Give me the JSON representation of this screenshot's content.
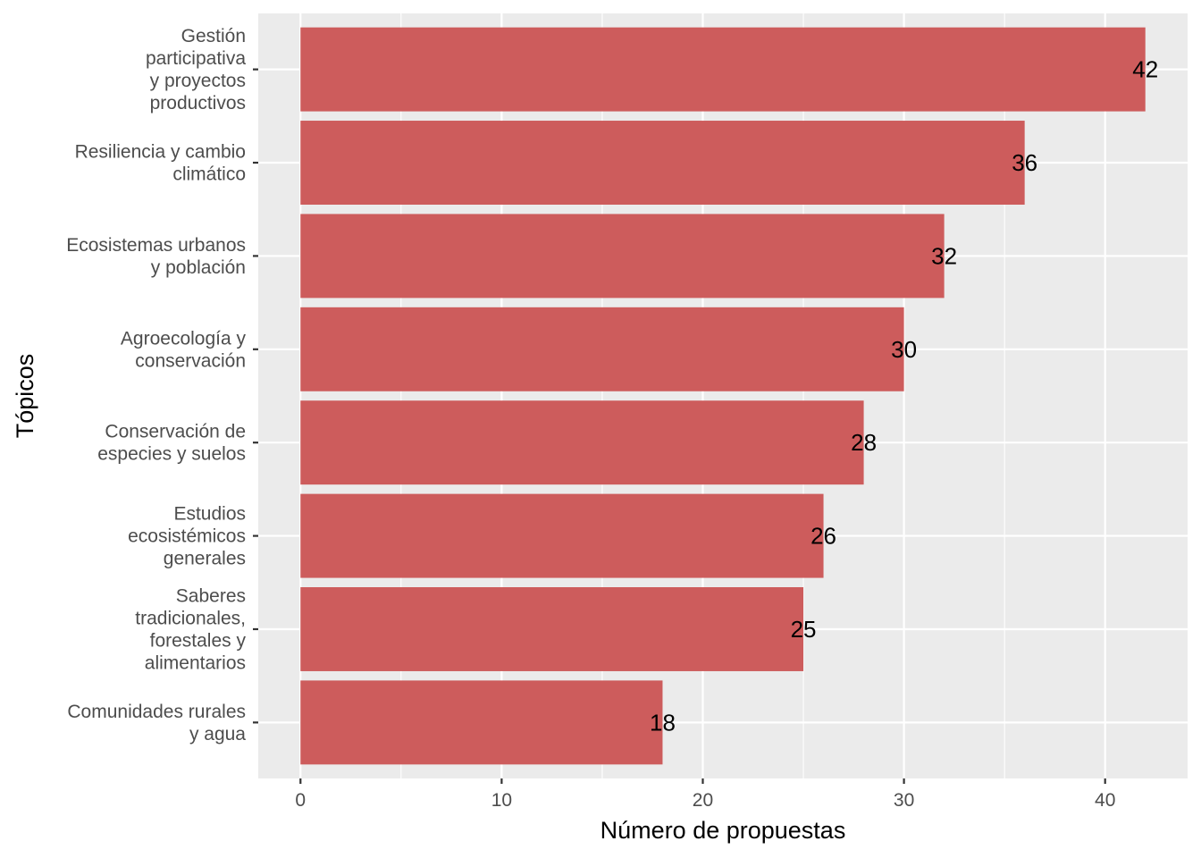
{
  "chart_data": {
    "type": "bar",
    "orientation": "horizontal",
    "title": "",
    "xlabel": "Número de propuestas",
    "ylabel": "Tópicos",
    "categories": [
      [
        "Gestión",
        "participativa",
        "y proyectos",
        "productivos"
      ],
      [
        "Resiliencia y cambio",
        "climático"
      ],
      [
        "Ecosistemas urbanos",
        "y población"
      ],
      [
        "Agroecología y",
        "conservación"
      ],
      [
        "Conservación de",
        "especies y suelos"
      ],
      [
        "Estudios",
        "ecosistémicos",
        "generales"
      ],
      [
        "Saberes",
        "tradicionales,",
        "forestales y",
        "alimentarios"
      ],
      [
        "Comunidades rurales",
        "y agua"
      ]
    ],
    "values": [
      42,
      36,
      32,
      30,
      28,
      26,
      25,
      18
    ],
    "data_labels": [
      "42",
      "36",
      "32",
      "30",
      "28",
      "26",
      "25",
      "18"
    ],
    "xlim": [
      -2.1,
      44.1
    ],
    "x_ticks": [
      0,
      10,
      20,
      30,
      40
    ],
    "x_tick_labels": [
      "0",
      "10",
      "20",
      "30",
      "40"
    ],
    "grid": true,
    "legend": "none",
    "colors": {
      "bar": "#cd5c5c",
      "panel": "#ebebeb",
      "grid": "#ffffff"
    }
  }
}
